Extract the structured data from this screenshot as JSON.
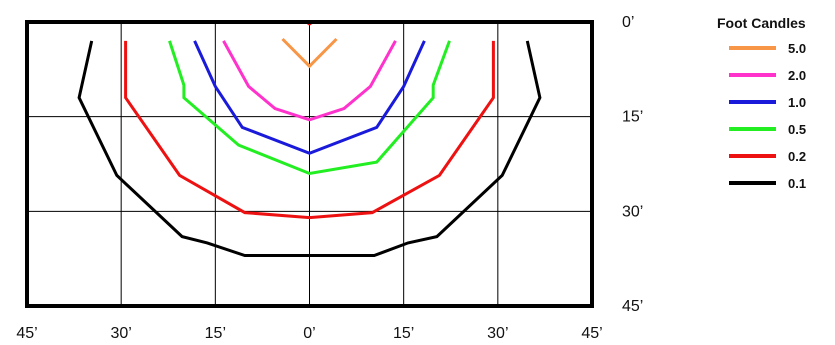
{
  "chart_data": {
    "type": "line",
    "title": "",
    "xlabel": "",
    "ylabel": "",
    "xlim": [
      -45,
      45
    ],
    "ylim": [
      0,
      45
    ],
    "x_ticks": [
      -45,
      -30,
      -15,
      0,
      15,
      30,
      45
    ],
    "x_tick_labels": [
      "45’",
      "30’",
      "15’",
      "0’",
      "15’",
      "30’",
      "45’"
    ],
    "y_ticks": [
      0,
      15,
      30,
      45
    ],
    "y_tick_labels": [
      "0’",
      "15’",
      "30’",
      "45’"
    ],
    "grid": true,
    "legend": {
      "title": "Foot Candles",
      "position": "right"
    },
    "series": [
      {
        "name": "5.0",
        "color": "#f79646",
        "x": [
          -4.3,
          0,
          4.3
        ],
        "y": [
          2.7,
          7.0,
          2.7
        ]
      },
      {
        "name": "2.0",
        "color": "#ff33cc",
        "x": [
          -13.7,
          -9.7,
          -5.5,
          0,
          5.5,
          9.7,
          13.7
        ],
        "y": [
          3.0,
          10.2,
          13.7,
          15.5,
          13.7,
          10.2,
          3.0
        ]
      },
      {
        "name": "1.0",
        "color": "#1a1adb",
        "x": [
          -18.3,
          -15.0,
          -10.7,
          0,
          10.7,
          15.0,
          18.3
        ],
        "y": [
          3.0,
          10.2,
          16.7,
          20.8,
          16.7,
          10.2,
          3.0
        ]
      },
      {
        "name": "0.5",
        "color": "#22ee22",
        "x": [
          -22.3,
          -20.0,
          -20.0,
          -11.3,
          0,
          10.7,
          19.7,
          19.7,
          22.3
        ],
        "y": [
          3.0,
          10.0,
          12.0,
          19.5,
          24.0,
          22.2,
          12.0,
          10.0,
          3.0
        ]
      },
      {
        "name": "0.2",
        "color": "#ee1111",
        "x": [
          -29.3,
          -29.3,
          -20.7,
          -10.3,
          0,
          10.0,
          20.7,
          29.3,
          29.3
        ],
        "y": [
          3.0,
          12.0,
          24.3,
          30.2,
          31.0,
          30.2,
          24.3,
          12.0,
          3.0
        ]
      },
      {
        "name": "0.1",
        "color": "#000000",
        "x": [
          -34.7,
          -36.7,
          -30.7,
          -20.3,
          -16.3,
          -10.3,
          -4.7,
          0,
          10.3,
          15.7,
          20.3,
          30.7,
          36.7,
          34.7
        ],
        "y": [
          3.0,
          12.0,
          24.3,
          34.0,
          35.0,
          37.0,
          37.0,
          37.0,
          37.0,
          35.0,
          34.0,
          24.3,
          12.0,
          3.0
        ]
      }
    ]
  }
}
